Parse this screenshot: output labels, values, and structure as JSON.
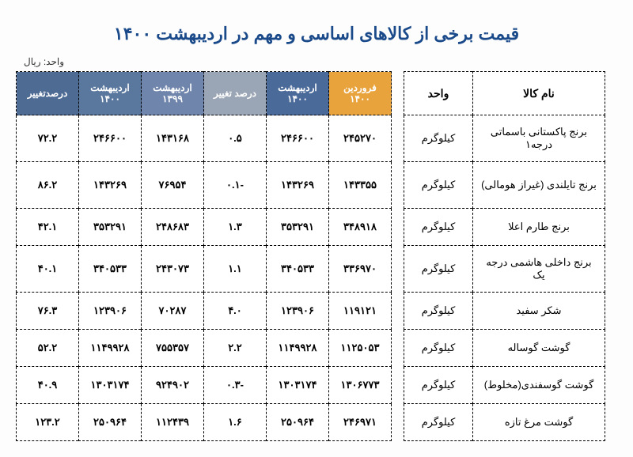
{
  "title": "قیمت برخی از کالاهای اساسی و مهم در اردیبهشت ۱۴۰۰",
  "unit_label": "واحد: ریال",
  "name_table": {
    "headers": {
      "name": "نام کالا",
      "unit": "واحد"
    },
    "rows": [
      {
        "name": "برنج پاکستانی باسماتی درجه۱",
        "unit": "کیلوگرم",
        "tall": true
      },
      {
        "name": "برنج تایلندی (غیراز هومالی)",
        "unit": "کیلوگرم",
        "tall": true
      },
      {
        "name": "برنج طارم اعلا",
        "unit": "کیلوگرم",
        "tall": false
      },
      {
        "name": "برنج داخلی هاشمی درجه یک",
        "unit": "کیلوگرم",
        "tall": true
      },
      {
        "name": "شکر سفید",
        "unit": "کیلوگرم",
        "tall": false
      },
      {
        "name": "گوشت گوساله",
        "unit": "کیلوگرم",
        "tall": false
      },
      {
        "name": "گوشت گوسفندی(مخلوط)",
        "unit": "کیلوگرم",
        "tall": false
      },
      {
        "name": "گوشت مرغ تازه",
        "unit": "کیلوگرم",
        "tall": false
      }
    ]
  },
  "data_table": {
    "headers": [
      {
        "label": "فروردین ۱۴۰۰",
        "cls": "hdr-orange"
      },
      {
        "label": "اردیبهشت ۱۴۰۰",
        "cls": "hdr-blue1"
      },
      {
        "label": "درصد تغییر",
        "cls": "hdr-grey"
      },
      {
        "label": "اردیبهشت ۱۳۹۹",
        "cls": "hdr-blue2"
      },
      {
        "label": "اردیبهشت ۱۴۰۰",
        "cls": "hdr-blue3"
      },
      {
        "label": "درصدتغییر",
        "cls": "hdr-blue4"
      }
    ],
    "rows": [
      {
        "cells": [
          "۲۴۵۲۷۰",
          "۲۴۶۶۰۰",
          "۰.۵",
          "۱۴۳۱۶۸",
          "۲۴۶۶۰۰",
          "۷۲.۲"
        ],
        "tall": true
      },
      {
        "cells": [
          "۱۴۳۳۵۵",
          "۱۴۳۲۶۹",
          "-۰.۱",
          "۷۶۹۵۴",
          "۱۴۳۲۶۹",
          "۸۶.۲"
        ],
        "tall": true
      },
      {
        "cells": [
          "۳۴۸۹۱۸",
          "۳۵۳۲۹۱",
          "۱.۳",
          "۲۴۸۶۸۳",
          "۳۵۳۲۹۱",
          "۴۲.۱"
        ],
        "tall": false
      },
      {
        "cells": [
          "۳۳۶۹۷۰",
          "۳۴۰۵۳۳",
          "۱.۱",
          "۲۴۳۰۷۳",
          "۳۴۰۵۳۳",
          "۴۰.۱"
        ],
        "tall": true
      },
      {
        "cells": [
          "۱۱۹۱۲۱",
          "۱۲۳۹۰۶",
          "۴.۰",
          "۷۰۲۸۷",
          "۱۲۳۹۰۶",
          "۷۶.۳"
        ],
        "tall": false
      },
      {
        "cells": [
          "۱۱۲۵۰۵۳",
          "۱۱۴۹۹۲۸",
          "۲.۲",
          "۷۵۵۳۵۷",
          "۱۱۴۹۹۲۸",
          "۵۲.۲"
        ],
        "tall": false
      },
      {
        "cells": [
          "۱۳۰۶۷۷۳",
          "۱۳۰۳۱۷۴",
          "-۰.۳",
          "۹۲۴۹۰۲",
          "۱۳۰۳۱۷۴",
          "۴۰.۹"
        ],
        "tall": false
      },
      {
        "cells": [
          "۲۴۶۹۷۱",
          "۲۵۰۹۶۴",
          "۱.۶",
          "۱۱۲۴۳۹",
          "۲۵۰۹۶۴",
          "۱۲۳.۲"
        ],
        "tall": false
      }
    ]
  }
}
